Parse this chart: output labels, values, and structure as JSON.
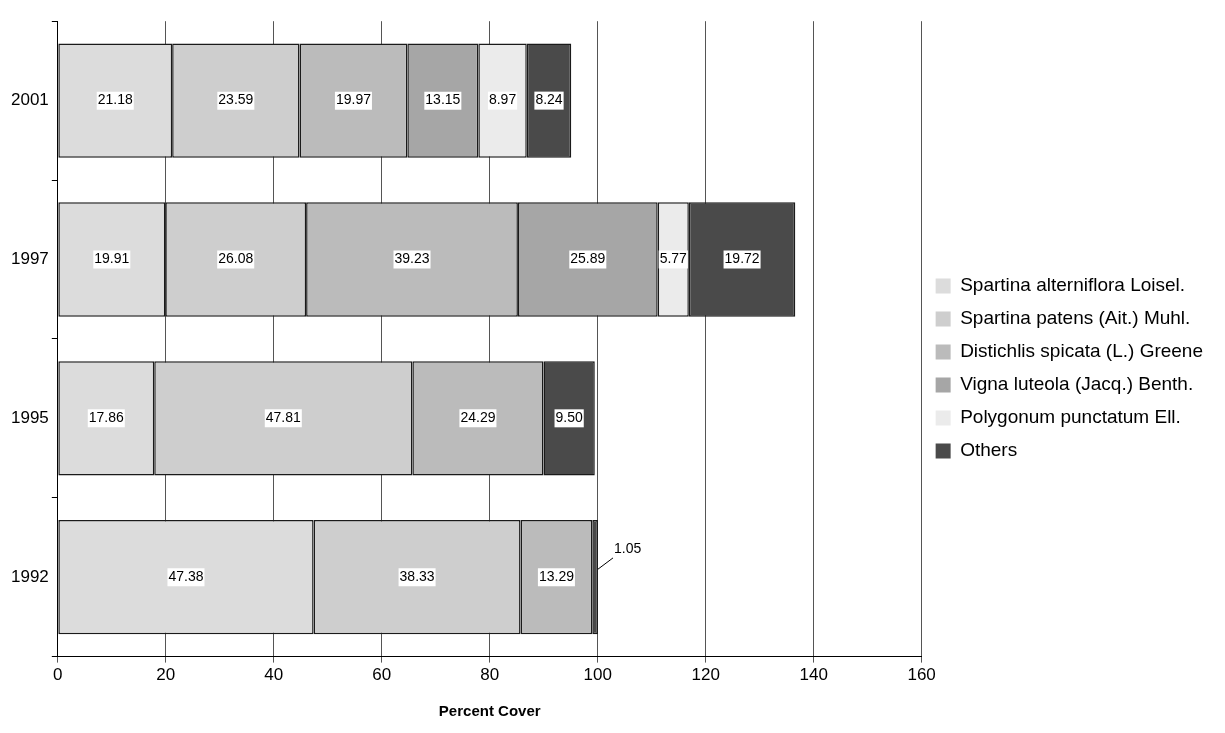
{
  "chart_data": {
    "type": "bar",
    "orientation": "horizontal",
    "stacked": true,
    "xlabel": "Percent Cover",
    "categories": [
      "2001",
      "1997",
      "1995",
      "1992"
    ],
    "xlim": [
      0,
      160
    ],
    "xticks": [
      0,
      20,
      40,
      60,
      80,
      100,
      120,
      140,
      160
    ],
    "grid": "x",
    "legend": "right",
    "series": [
      {
        "name": "Spartina alterniflora Loisel.",
        "color": "#dcdcdc",
        "values": [
          21.18,
          19.91,
          17.86,
          47.38
        ],
        "value_labels": [
          "21.18",
          "19.91",
          "17.86",
          "47.38"
        ]
      },
      {
        "name": "Spartina patens (Ait.) Muhl.",
        "color": "#cecece",
        "values": [
          23.59,
          26.08,
          47.81,
          38.33
        ],
        "value_labels": [
          "23.59",
          "26.08",
          "47.81",
          "38.33"
        ]
      },
      {
        "name": "Distichlis spicata (L.) Greene",
        "color": "#bbbbbb",
        "values": [
          19.97,
          39.23,
          24.29,
          13.29
        ],
        "value_labels": [
          "19.97",
          "39.23",
          "24.29",
          "13.29"
        ]
      },
      {
        "name": "Vigna luteola (Jacq.) Benth.",
        "color": "#a6a6a6",
        "values": [
          13.15,
          25.89,
          null,
          null
        ],
        "value_labels": [
          "13.15",
          "25.89",
          null,
          null
        ]
      },
      {
        "name": "Polygonum punctatum Ell.",
        "color": "#ebebeb",
        "values": [
          8.97,
          5.77,
          null,
          null
        ],
        "value_labels": [
          "8.97",
          "5.77",
          null,
          null
        ]
      },
      {
        "name": "Others",
        "color": "#4a4a4a",
        "values": [
          8.24,
          19.72,
          9.5,
          1.05
        ],
        "value_labels": [
          "8.24",
          "19.72",
          "9.50",
          "1.05"
        ]
      }
    ]
  }
}
